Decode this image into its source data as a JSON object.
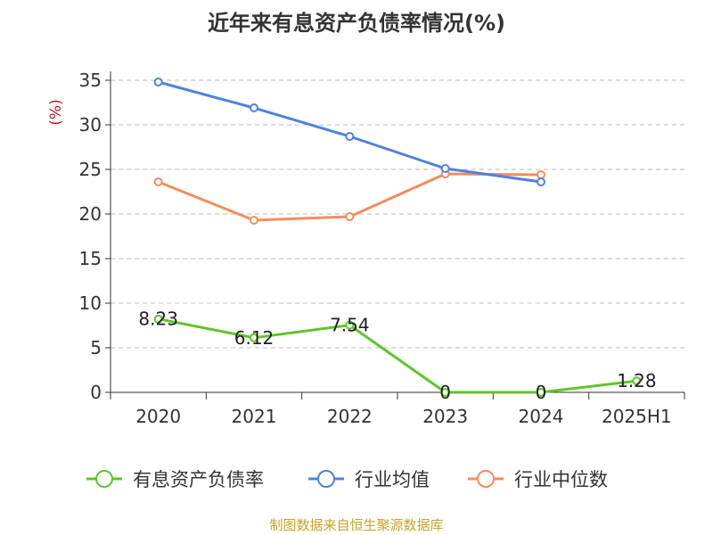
{
  "chart_data": {
    "type": "line",
    "title": "近年来有息资产负债率情况(%)",
    "ylabel": "(%)",
    "xlabel": "",
    "categories": [
      "2020",
      "2021",
      "2022",
      "2023",
      "2024",
      "2025H1"
    ],
    "ylim": [
      0,
      35
    ],
    "yticks": [
      0,
      5,
      10,
      15,
      20,
      25,
      30,
      35
    ],
    "grid": true,
    "legend_position": "bottom",
    "series": [
      {
        "name": "有息资产负债率",
        "color": "#5ec52a",
        "values": [
          8.23,
          6.12,
          7.54,
          0,
          0,
          1.28
        ],
        "labels": [
          "8.23",
          "6.12",
          "7.54",
          "0",
          "0",
          "1.28"
        ]
      },
      {
        "name": "行业均值",
        "color": "#4e82e0",
        "values": [
          34.8,
          31.9,
          28.7,
          25.1,
          23.6,
          null
        ]
      },
      {
        "name": "行业中位数",
        "color": "#f28e5c",
        "values": [
          23.6,
          19.3,
          19.7,
          24.5,
          24.4,
          null
        ]
      }
    ]
  },
  "source": "制图数据来自恒生聚源数据库",
  "colors": {
    "title": "#333333",
    "axis": "#333333",
    "grid": "#bdbdbd",
    "ylabel": "#c0161e",
    "source": "#c9a227"
  }
}
